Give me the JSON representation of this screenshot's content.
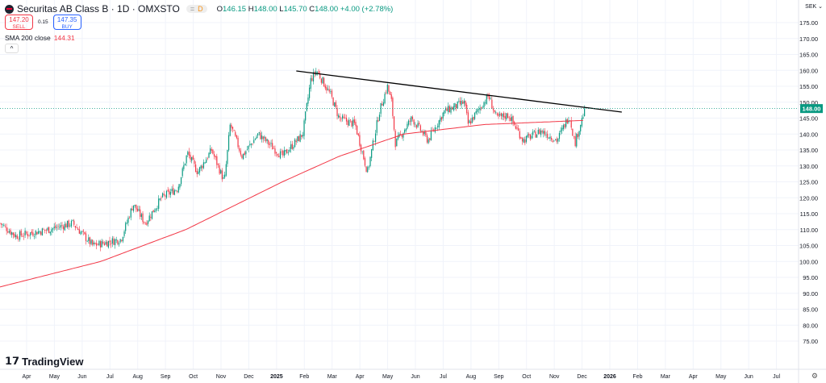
{
  "header": {
    "symbol": "Securitas AB Class B · 1D · OMXSTO",
    "badge": "D",
    "open_label": "O",
    "open": "146.15",
    "high_label": "H",
    "high": "148.00",
    "low_label": "L",
    "low": "145.70",
    "close_label": "C",
    "close": "148.00",
    "change": "+4.00 (+2.78%)"
  },
  "trade": {
    "sell_price": "147.20",
    "sell_label": "SELL",
    "spread": "0.15",
    "buy_price": "147.35",
    "buy_label": "BUY"
  },
  "indicator": {
    "label": "SMA 200 close",
    "value": "144.31"
  },
  "currency": "SEK",
  "brand": "TradingView",
  "colors": {
    "up": "#089981",
    "down": "#f23645",
    "sma": "#f23645",
    "trend": "#000000",
    "last": "#089981"
  },
  "chart_data": {
    "type": "candlestick",
    "title": "Securitas AB Class B · 1D · OMXSTO",
    "x_unit": "months since Apr 2024",
    "xlim": [
      -0.96,
      28.2
    ],
    "ylim": [
      72,
      178
    ],
    "y_ticks": [
      75,
      80,
      85,
      90,
      95,
      100,
      105,
      110,
      115,
      120,
      125,
      130,
      135,
      140,
      145,
      150,
      155,
      160,
      165,
      170,
      175
    ],
    "x_ticks": [
      {
        "m": 0,
        "label": "Apr"
      },
      {
        "m": 1,
        "label": "May"
      },
      {
        "m": 2,
        "label": "Jun"
      },
      {
        "m": 3,
        "label": "Jul"
      },
      {
        "m": 4,
        "label": "Aug"
      },
      {
        "m": 5,
        "label": "Sep"
      },
      {
        "m": 6,
        "label": "Oct"
      },
      {
        "m": 7,
        "label": "Nov"
      },
      {
        "m": 8,
        "label": "Dec"
      },
      {
        "m": 9,
        "label": "2025"
      },
      {
        "m": 10,
        "label": "Feb"
      },
      {
        "m": 11,
        "label": "Mar"
      },
      {
        "m": 12,
        "label": "Apr"
      },
      {
        "m": 13,
        "label": "May"
      },
      {
        "m": 14,
        "label": "Jun"
      },
      {
        "m": 15,
        "label": "Jul"
      },
      {
        "m": 16,
        "label": "Aug"
      },
      {
        "m": 17,
        "label": "Sep"
      },
      {
        "m": 18,
        "label": "Oct"
      },
      {
        "m": 19,
        "label": "Nov"
      },
      {
        "m": 20,
        "label": "Dec"
      },
      {
        "m": 21,
        "label": "2026"
      },
      {
        "m": 22,
        "label": "Feb"
      },
      {
        "m": 23,
        "label": "Mar"
      },
      {
        "m": 24,
        "label": "Apr"
      },
      {
        "m": 25,
        "label": "May"
      },
      {
        "m": 26,
        "label": "Jun"
      },
      {
        "m": 27,
        "label": "Jul"
      }
    ],
    "price_path": [
      [
        -0.96,
        112
      ],
      [
        -0.38,
        108
      ],
      [
        0.78,
        110
      ],
      [
        1.66,
        112
      ],
      [
        2.38,
        105
      ],
      [
        3.4,
        107
      ],
      [
        3.84,
        118
      ],
      [
        4.27,
        112
      ],
      [
        4.86,
        120
      ],
      [
        5.44,
        123
      ],
      [
        5.79,
        134
      ],
      [
        6.16,
        128
      ],
      [
        6.66,
        135
      ],
      [
        7.12,
        125
      ],
      [
        7.33,
        143
      ],
      [
        7.76,
        133
      ],
      [
        8.34,
        140
      ],
      [
        9.21,
        133
      ],
      [
        9.94,
        140
      ],
      [
        10.23,
        157
      ],
      [
        10.44,
        160
      ],
      [
        10.96,
        152
      ],
      [
        11.25,
        145
      ],
      [
        11.83,
        143
      ],
      [
        12.27,
        128
      ],
      [
        12.7,
        147
      ],
      [
        12.99,
        155
      ],
      [
        13.14,
        150
      ],
      [
        13.28,
        137
      ],
      [
        13.87,
        145
      ],
      [
        14.45,
        138
      ],
      [
        15.03,
        147
      ],
      [
        15.76,
        150
      ],
      [
        15.9,
        143
      ],
      [
        16.63,
        152
      ],
      [
        16.92,
        145
      ],
      [
        17.36,
        146
      ],
      [
        17.88,
        138
      ],
      [
        18.52,
        141
      ],
      [
        19.1,
        138
      ],
      [
        19.54,
        146
      ],
      [
        19.74,
        137
      ],
      [
        19.97,
        144
      ],
      [
        20.12,
        148
      ]
    ],
    "sma200": {
      "name": "SMA 200 close",
      "path": [
        [
          -0.96,
          92
        ],
        [
          2.67,
          100
        ],
        [
          5.73,
          110
        ],
        [
          9.21,
          125
        ],
        [
          11.25,
          133
        ],
        [
          13.58,
          140
        ],
        [
          16.49,
          143
        ],
        [
          20.12,
          144.31
        ]
      ]
    },
    "trendline": [
      [
        9.71,
        159.8
      ],
      [
        21.43,
        146.9
      ]
    ],
    "last_price": 148.0,
    "last_price_label": "148.00"
  }
}
